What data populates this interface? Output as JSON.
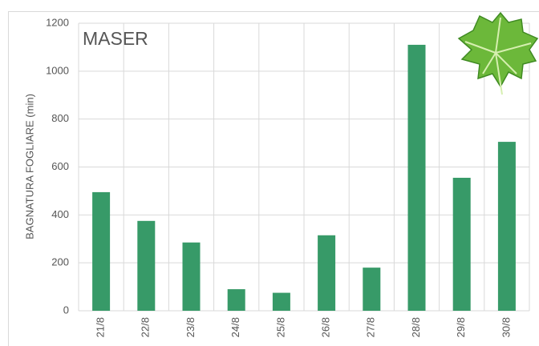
{
  "chart_data": {
    "type": "bar",
    "title": "MASER",
    "y_label": "BAGNATURA FOGLIARE (min)",
    "categories": [
      "21/8",
      "22/8",
      "23/8",
      "24/8",
      "25/8",
      "26/8",
      "27/8",
      "28/8",
      "29/8",
      "30/8"
    ],
    "values": [
      495,
      375,
      285,
      90,
      75,
      315,
      180,
      1110,
      555,
      705
    ],
    "color": "#379a68",
    "ylim": [
      0,
      1200
    ],
    "yticks": [
      0,
      200,
      400,
      600,
      800,
      1000,
      1200
    ],
    "grid": true
  }
}
